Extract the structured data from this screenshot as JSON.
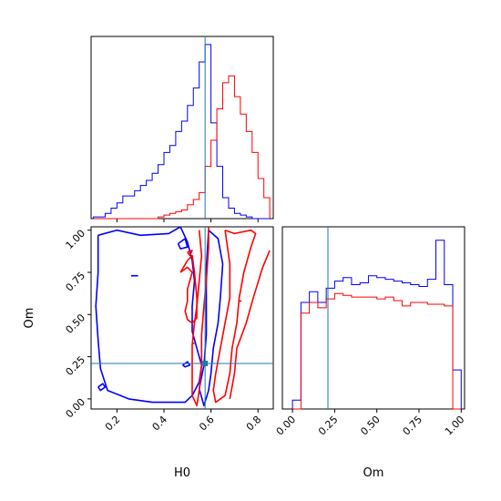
{
  "chart_data": {
    "type": "corner",
    "parameters": [
      "H0",
      "Om"
    ],
    "truth": {
      "H0": 0.575,
      "Om": 0.21
    },
    "colors": {
      "blue": "#0000ff",
      "red": "#ff0000",
      "truth": "#1f77b4"
    },
    "axis_labels": {
      "x_H0": "H0",
      "x_Om": "Om",
      "y_Om": "Om"
    },
    "H0_ticks": [
      "0.2",
      "0.4",
      "0.6",
      "0.8"
    ],
    "Om_ticks": [
      "0.00",
      "0.25",
      "0.50",
      "0.75",
      "1.00"
    ],
    "H0_range": [
      0.09,
      0.865
    ],
    "Om_range": [
      -0.06,
      1.02
    ],
    "hist_H0": {
      "edges": [
        0.1,
        0.125,
        0.15,
        0.175,
        0.2,
        0.225,
        0.25,
        0.275,
        0.3,
        0.325,
        0.35,
        0.375,
        0.4,
        0.425,
        0.45,
        0.475,
        0.5,
        0.525,
        0.55,
        0.575,
        0.6,
        0.625,
        0.65,
        0.675,
        0.7,
        0.725,
        0.75,
        0.775,
        0.8,
        0.825,
        0.85
      ],
      "blue": [
        0.01,
        0.01,
        0.03,
        0.06,
        0.09,
        0.13,
        0.13,
        0.16,
        0.19,
        0.22,
        0.26,
        0.31,
        0.38,
        0.42,
        0.5,
        0.56,
        0.65,
        0.75,
        0.9,
        1.0,
        0.55,
        0.3,
        0.12,
        0.06,
        0.03,
        0.02,
        0.01,
        0.0,
        0.0,
        0.0
      ],
      "red": [
        0.0,
        0.0,
        0.0,
        0.0,
        0.0,
        0.0,
        0.0,
        0.0,
        0.0,
        0.0,
        0.0,
        0.01,
        0.02,
        0.03,
        0.04,
        0.05,
        0.08,
        0.11,
        0.15,
        0.3,
        0.45,
        0.63,
        0.78,
        0.82,
        0.7,
        0.6,
        0.5,
        0.38,
        0.23,
        0.12
      ]
    },
    "hist_Om": {
      "edges": [
        0.0,
        0.05,
        0.1,
        0.15,
        0.2,
        0.25,
        0.3,
        0.35,
        0.4,
        0.45,
        0.5,
        0.55,
        0.6,
        0.65,
        0.7,
        0.75,
        0.8,
        0.85,
        0.9,
        0.95,
        1.0
      ],
      "blue": [
        0.05,
        0.6,
        0.66,
        0.6,
        0.68,
        0.72,
        0.74,
        0.7,
        0.71,
        0.75,
        0.74,
        0.73,
        0.72,
        0.71,
        0.7,
        0.69,
        0.73,
        0.95,
        0.7,
        0.22
      ],
      "red": [
        0.0,
        0.54,
        0.6,
        0.57,
        0.62,
        0.65,
        0.64,
        0.63,
        0.63,
        0.63,
        0.62,
        0.63,
        0.61,
        0.58,
        0.6,
        0.6,
        0.59,
        0.59,
        0.58,
        0.0
      ]
    },
    "contours": [
      {
        "color": "blue",
        "points": [
          [
            0.12,
            0.97
          ],
          [
            0.2,
            1.0
          ],
          [
            0.3,
            0.97
          ],
          [
            0.42,
            0.98
          ],
          [
            0.47,
            1.02
          ],
          [
            0.5,
            0.93
          ],
          [
            0.52,
            0.82
          ],
          [
            0.53,
            0.7
          ],
          [
            0.52,
            0.55
          ],
          [
            0.52,
            0.4
          ],
          [
            0.54,
            0.3
          ],
          [
            0.56,
            0.2
          ],
          [
            0.55,
            0.1
          ],
          [
            0.52,
            0.02
          ],
          [
            0.49,
            -0.02
          ],
          [
            0.35,
            -0.02
          ],
          [
            0.25,
            0.0
          ],
          [
            0.16,
            0.05
          ],
          [
            0.13,
            0.18
          ],
          [
            0.12,
            0.35
          ],
          [
            0.11,
            0.55
          ],
          [
            0.12,
            0.75
          ],
          [
            0.12,
            0.97
          ]
        ]
      },
      {
        "color": "blue",
        "points": [
          [
            0.59,
            1.0
          ],
          [
            0.63,
            0.95
          ],
          [
            0.65,
            0.8
          ],
          [
            0.64,
            0.6
          ],
          [
            0.63,
            0.45
          ],
          [
            0.61,
            0.3
          ],
          [
            0.6,
            0.15
          ],
          [
            0.59,
            0.05
          ],
          [
            0.57,
            -0.04
          ],
          [
            0.55,
            0.06
          ],
          [
            0.57,
            0.2
          ],
          [
            0.58,
            0.38
          ],
          [
            0.58,
            0.58
          ],
          [
            0.58,
            0.78
          ],
          [
            0.59,
            1.0
          ]
        ]
      },
      {
        "color": "blue",
        "points": [
          [
            0.12,
            0.07
          ],
          [
            0.14,
            0.09
          ],
          [
            0.15,
            0.07
          ],
          [
            0.13,
            0.05
          ],
          [
            0.12,
            0.07
          ]
        ]
      },
      {
        "color": "blue",
        "points": [
          [
            0.26,
            0.73
          ],
          [
            0.29,
            0.73
          ]
        ]
      },
      {
        "color": "blue",
        "points": [
          [
            0.46,
            0.92
          ],
          [
            0.49,
            0.95
          ],
          [
            0.5,
            0.9
          ],
          [
            0.47,
            0.89
          ],
          [
            0.46,
            0.92
          ]
        ]
      },
      {
        "color": "blue",
        "points": [
          [
            0.48,
            0.2
          ],
          [
            0.5,
            0.22
          ],
          [
            0.51,
            0.2
          ],
          [
            0.49,
            0.19
          ],
          [
            0.48,
            0.2
          ]
        ]
      },
      {
        "color": "red",
        "points": [
          [
            0.55,
            1.0
          ],
          [
            0.56,
            0.85
          ],
          [
            0.55,
            0.7
          ],
          [
            0.54,
            0.55
          ],
          [
            0.53,
            0.45
          ],
          [
            0.52,
            0.32
          ],
          [
            0.52,
            0.2
          ],
          [
            0.52,
            0.1
          ],
          [
            0.52,
            0.02
          ],
          [
            0.54,
            -0.04
          ],
          [
            0.55,
            0.05
          ],
          [
            0.56,
            0.2
          ],
          [
            0.56,
            0.38
          ],
          [
            0.57,
            0.55
          ],
          [
            0.58,
            0.7
          ],
          [
            0.59,
            0.9
          ],
          [
            0.59,
            1.02
          ]
        ]
      },
      {
        "color": "red",
        "points": [
          [
            0.66,
            1.0
          ],
          [
            0.68,
            0.8
          ],
          [
            0.68,
            0.6
          ],
          [
            0.66,
            0.45
          ],
          [
            0.64,
            0.3
          ],
          [
            0.62,
            0.15
          ],
          [
            0.61,
            0.05
          ],
          [
            0.62,
            -0.02
          ],
          [
            0.66,
            0.02
          ],
          [
            0.68,
            0.15
          ],
          [
            0.69,
            0.3
          ],
          [
            0.71,
            0.45
          ],
          [
            0.72,
            0.6
          ],
          [
            0.74,
            0.75
          ],
          [
            0.77,
            0.9
          ],
          [
            0.79,
            0.98
          ],
          [
            0.77,
            1.0
          ],
          [
            0.7,
            0.98
          ],
          [
            0.66,
            1.0
          ]
        ]
      },
      {
        "color": "red",
        "points": [
          [
            0.68,
            0.0
          ],
          [
            0.7,
            0.15
          ],
          [
            0.71,
            0.3
          ],
          [
            0.75,
            0.45
          ],
          [
            0.78,
            0.6
          ],
          [
            0.82,
            0.78
          ],
          [
            0.85,
            0.88
          ]
        ]
      },
      {
        "color": "red",
        "points": [
          [
            0.47,
            0.75
          ],
          [
            0.5,
            0.78
          ],
          [
            0.52,
            0.75
          ],
          [
            0.5,
            0.65
          ],
          [
            0.5,
            0.58
          ],
          [
            0.49,
            0.52
          ],
          [
            0.5,
            0.47
          ],
          [
            0.52,
            0.45
          ],
          [
            0.54,
            0.48
          ],
          [
            0.54,
            0.6
          ],
          [
            0.53,
            0.75
          ],
          [
            0.52,
            0.85
          ],
          [
            0.5,
            0.82
          ],
          [
            0.47,
            0.75
          ]
        ]
      },
      {
        "color": "red",
        "points": [
          [
            0.5,
            0.87
          ],
          [
            0.52,
            0.88
          ],
          [
            0.51,
            0.85
          ],
          [
            0.5,
            0.87
          ]
        ]
      },
      {
        "color": "red",
        "points": [
          [
            0.52,
            0.33
          ],
          [
            0.53,
            0.33
          ]
        ]
      },
      {
        "color": "red",
        "points": [
          [
            0.72,
            0.58
          ],
          [
            0.73,
            0.58
          ]
        ]
      }
    ]
  }
}
